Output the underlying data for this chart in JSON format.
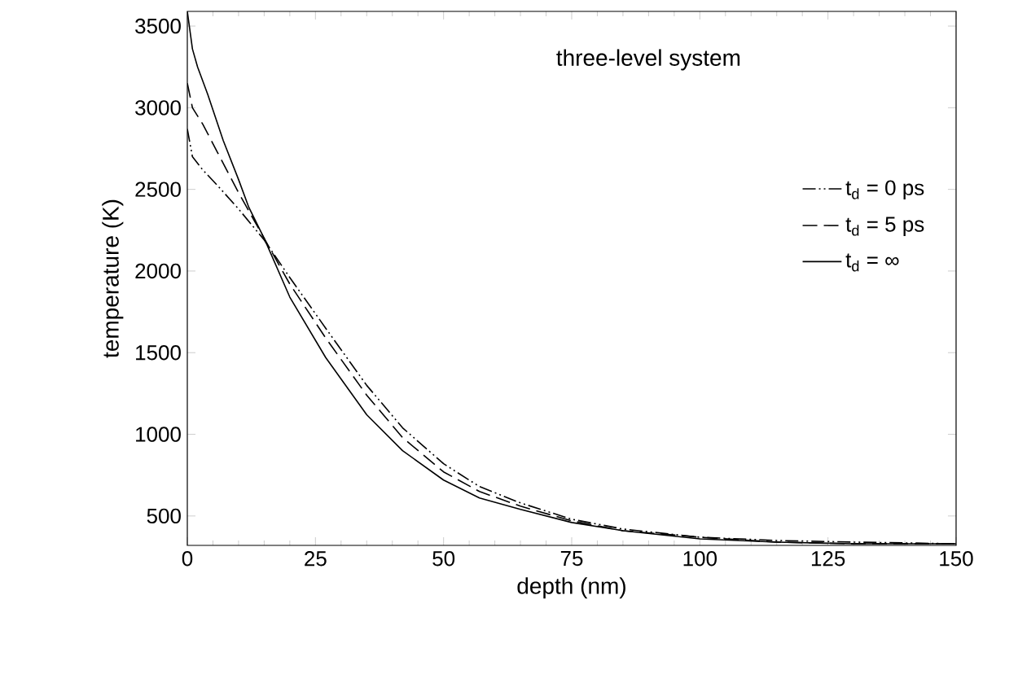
{
  "chart_data": {
    "type": "line",
    "xlabel": "depth (nm)",
    "ylabel": "temperature (K)",
    "annotations": [
      "three-level system"
    ],
    "xlim": [
      0,
      150
    ],
    "xticks": [
      0,
      25,
      50,
      75,
      100,
      125,
      150
    ],
    "ylim": [
      320,
      3590
    ],
    "yticks": [
      500,
      1000,
      1500,
      2000,
      2500,
      3000,
      3500
    ],
    "legend": "right",
    "marker": "none",
    "series": [
      {
        "name": "t$_{d}$ = 0 ps",
        "line_style": "dashdotdot",
        "color": "#000000",
        "x": [
          0,
          1,
          3,
          6,
          10,
          15,
          20,
          27,
          35,
          42,
          50,
          57,
          65,
          75,
          85,
          100,
          115,
          130,
          150
        ],
        "values": [
          2870,
          2700,
          2620,
          2520,
          2380,
          2190,
          1960,
          1650,
          1300,
          1040,
          820,
          680,
          580,
          480,
          420,
          370,
          350,
          340,
          330
        ]
      },
      {
        "name": "t$_{d}$ = 5 ps",
        "line_style": "dashed",
        "color": "#000000",
        "x": [
          0,
          1,
          3,
          6,
          10,
          15,
          20,
          27,
          35,
          42,
          50,
          57,
          65,
          75,
          85,
          100,
          115,
          130,
          150
        ],
        "values": [
          3150,
          3000,
          2900,
          2720,
          2480,
          2200,
          1920,
          1590,
          1240,
          980,
          770,
          650,
          560,
          470,
          410,
          370,
          340,
          330,
          330
        ]
      },
      {
        "name": "t$_{d}$ = ∞",
        "line_style": "solid",
        "color": "#000000",
        "x": [
          0,
          1,
          2,
          4,
          7,
          10,
          12,
          15,
          20,
          27,
          35,
          42,
          50,
          57,
          65,
          75,
          85,
          100,
          115,
          130,
          150
        ],
        "values": [
          3590,
          3360,
          3250,
          3080,
          2800,
          2560,
          2390,
          2200,
          1840,
          1470,
          1120,
          900,
          720,
          610,
          540,
          460,
          410,
          360,
          340,
          330,
          330
        ]
      }
    ]
  }
}
